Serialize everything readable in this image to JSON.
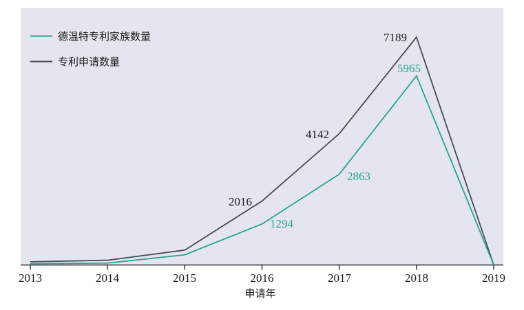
{
  "figure": {
    "xaxis_title": "申请年",
    "legend": {
      "position": "top-left",
      "items": [
        {
          "label": "德温特专利家族数量",
          "color": "#2aa38a"
        },
        {
          "label": "专利申请数量",
          "color": "#4a4a54"
        }
      ]
    }
  },
  "colors": {
    "plot_background": "#e4e5ef",
    "page_background": "#ffffff",
    "axis": "#2b2b33",
    "teal_series": "#2aa38a",
    "dark_series": "#4a4a54",
    "dark_label_text": "#1c1c1c",
    "teal_label_text": "#2aa38a"
  },
  "chart_data": {
    "type": "line",
    "categories": [
      "2013",
      "2014",
      "2015",
      "2016",
      "2017",
      "2018",
      "2019"
    ],
    "series": [
      {
        "name": "德温特专利家族数量",
        "color": "#2aa38a",
        "values": [
          40,
          60,
          320,
          1294,
          2863,
          5965,
          0
        ],
        "data_labels": [
          "",
          "",
          "",
          "1294",
          "2863",
          "5965",
          ""
        ]
      },
      {
        "name": "专利申请数量",
        "color": "#4a4a54",
        "values": [
          100,
          150,
          470,
          2016,
          4142,
          7189,
          0
        ],
        "data_labels": [
          "",
          "",
          "",
          "2016",
          "4142",
          "7189",
          ""
        ]
      }
    ],
    "title": "",
    "xlabel": "申请年",
    "ylabel": "",
    "ylim": [
      0,
      8100
    ],
    "grid": false,
    "y_axis_shown": false,
    "legend_position": "top-left",
    "legend_entries": [
      "德温特专利家族数量",
      "专利申请数量"
    ]
  }
}
